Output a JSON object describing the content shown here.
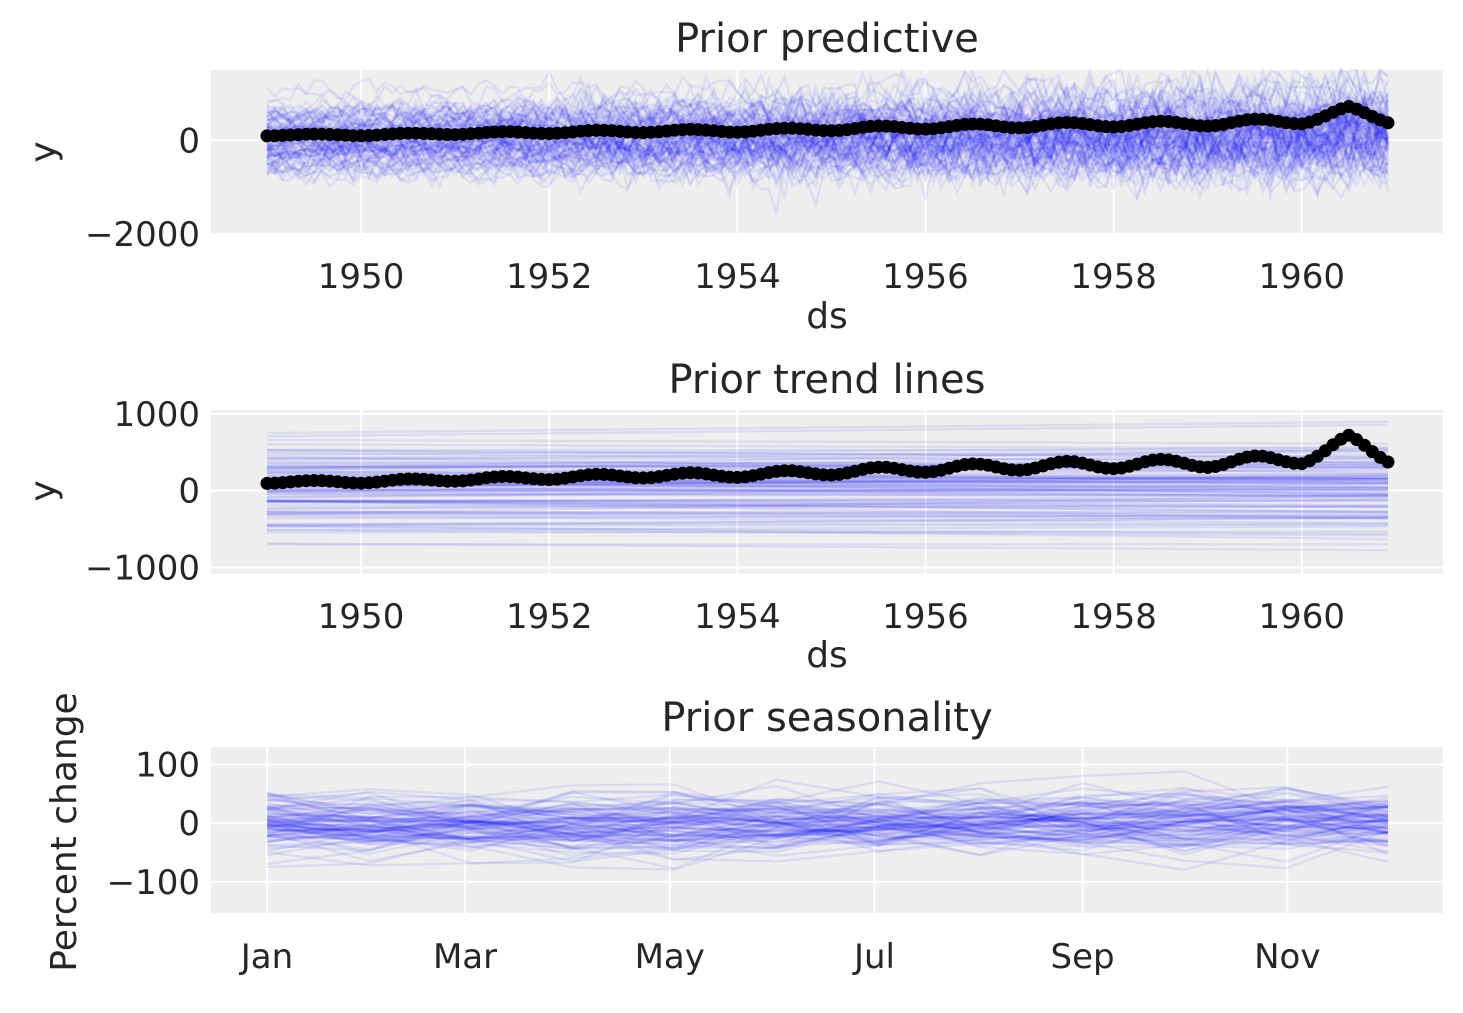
{
  "chart_data": [
    {
      "type": "line",
      "title": "Prior predictive",
      "xlabel": "ds",
      "ylabel": "y",
      "x_tick_labels": [
        "1950",
        "1952",
        "1954",
        "1956",
        "1958",
        "1960"
      ],
      "y_tick_labels": [
        "0",
        "−2000"
      ],
      "x_range": [
        "1949-01",
        "1960-12"
      ],
      "ylim": [
        -2000,
        1500
      ],
      "grid": true,
      "series": [
        {
          "kind": "observed",
          "color": "#000000",
          "x": [
            "1949-01",
            "1950-01",
            "1951-01",
            "1952-01",
            "1953-01",
            "1954-01",
            "1955-01",
            "1956-01",
            "1957-01",
            "1958-01",
            "1959-01",
            "1960-01",
            "1960-07",
            "1960-12"
          ],
          "values": [
            112,
            115,
            145,
            171,
            196,
            204,
            242,
            284,
            315,
            340,
            360,
            417,
            622,
            432
          ]
        },
        {
          "kind": "prior predictive samples",
          "color": "#0000ff",
          "sample_count": 100,
          "values_range": [
            -2000,
            1500
          ]
        }
      ]
    },
    {
      "type": "line",
      "title": "Prior trend lines",
      "xlabel": "ds",
      "ylabel": "y",
      "x_tick_labels": [
        "1950",
        "1952",
        "1954",
        "1956",
        "1958",
        "1960"
      ],
      "y_tick_labels": [
        "1000",
        "0",
        "−1000"
      ],
      "x_range": [
        "1949-01",
        "1960-12"
      ],
      "ylim": [
        -1100,
        1050
      ],
      "grid": true,
      "series": [
        {
          "kind": "observed",
          "color": "#000000",
          "x": [
            "1949-01",
            "1950-01",
            "1951-01",
            "1952-01",
            "1953-01",
            "1954-01",
            "1955-01",
            "1956-01",
            "1957-01",
            "1958-01",
            "1959-01",
            "1960-01",
            "1960-07",
            "1960-12"
          ],
          "values": [
            112,
            115,
            145,
            171,
            196,
            204,
            242,
            284,
            315,
            340,
            360,
            417,
            622,
            432
          ]
        },
        {
          "kind": "prior trend samples",
          "color": "#0000ff",
          "sample_count": 100,
          "values_range": [
            -1000,
            950
          ]
        }
      ]
    },
    {
      "type": "line",
      "title": "Prior seasonality",
      "xlabel": "",
      "ylabel": "Percent change",
      "x_tick_labels": [
        "Jan",
        "Mar",
        "May",
        "Jul",
        "Sep",
        "Nov"
      ],
      "y_tick_labels": [
        "100",
        "0",
        "−100"
      ],
      "x_range": [
        "Jan",
        "Dec"
      ],
      "ylim": [
        -155,
        130
      ],
      "grid": true,
      "series": [
        {
          "kind": "prior seasonality samples",
          "color": "#0000ff",
          "sample_count": 100,
          "values_range": [
            -140,
            115
          ]
        }
      ]
    }
  ]
}
